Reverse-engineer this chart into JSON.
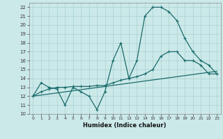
{
  "xlabel": "Humidex (Indice chaleur)",
  "bg_color": "#cce9e9",
  "grid_color": "#aed4d4",
  "line_color": "#1a6b6b",
  "xlim": [
    -0.5,
    23.5
  ],
  "ylim": [
    10,
    22.5
  ],
  "xticks": [
    0,
    1,
    2,
    3,
    4,
    5,
    6,
    7,
    8,
    9,
    10,
    11,
    12,
    13,
    14,
    15,
    16,
    17,
    18,
    19,
    20,
    21,
    22,
    23
  ],
  "yticks": [
    10,
    11,
    12,
    13,
    14,
    15,
    16,
    17,
    18,
    19,
    20,
    21,
    22
  ],
  "series1_x": [
    0,
    1,
    2,
    3,
    4,
    5,
    6,
    7,
    8,
    9,
    10,
    11,
    12,
    13,
    14,
    15,
    16,
    17,
    18,
    19,
    20,
    21,
    22,
    23
  ],
  "series1_y": [
    12,
    13.5,
    13,
    12.8,
    11,
    13,
    12.5,
    12,
    10.5,
    12.5,
    16,
    18,
    14,
    16,
    21,
    22,
    22,
    21.5,
    20.5,
    18.5,
    17,
    16,
    15.5,
    14.5
  ],
  "series2_x": [
    0,
    23
  ],
  "series2_y": [
    12,
    14.8
  ],
  "series3_x": [
    0,
    1,
    2,
    3,
    4,
    5,
    6,
    7,
    8,
    9,
    10,
    11,
    12,
    13,
    14,
    15,
    16,
    17,
    18,
    19,
    20,
    21,
    22,
    23
  ],
  "series3_y": [
    12,
    12.5,
    12.8,
    13,
    13,
    13.1,
    13.1,
    13.1,
    13.2,
    13.2,
    13.5,
    13.8,
    14,
    14.2,
    14.5,
    15,
    16.5,
    17,
    17,
    16,
    16,
    15.5,
    14.5,
    14.5
  ]
}
